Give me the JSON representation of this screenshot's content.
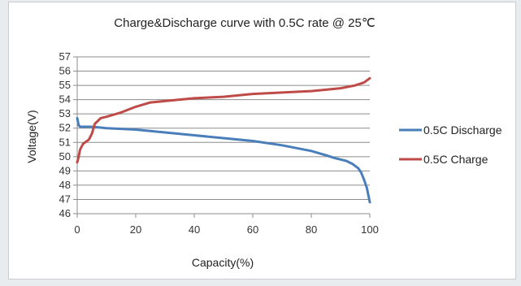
{
  "chart_data": {
    "type": "line",
    "title": "Charge&Discharge  curve with 0.5C rate @ 25℃",
    "xlabel": "Capacity(%)",
    "ylabel": "Voltage(V)",
    "xlim": [
      0,
      100
    ],
    "ylim": [
      46,
      57
    ],
    "xticks": [
      "0",
      "20",
      "40",
      "60",
      "80",
      "100"
    ],
    "yticks": [
      "46",
      "47",
      "48",
      "49",
      "50",
      "51",
      "52",
      "53",
      "54",
      "55",
      "56",
      "57"
    ],
    "grid": "horizontal",
    "legend_position": "right",
    "series": [
      {
        "name": "0.5C  Discharge",
        "legend_label": "0.5C  Discharge",
        "color": "#4a7ebb",
        "x": [
          0,
          0.5,
          1,
          2,
          5,
          10,
          20,
          30,
          40,
          50,
          60,
          70,
          80,
          85,
          88,
          90,
          92,
          94,
          96,
          97,
          98,
          99,
          100
        ],
        "y": [
          52.7,
          52.2,
          52.1,
          52.1,
          52.1,
          52.0,
          51.9,
          51.7,
          51.5,
          51.3,
          51.1,
          50.8,
          50.4,
          50.1,
          49.9,
          49.8,
          49.7,
          49.5,
          49.2,
          48.9,
          48.4,
          47.8,
          46.8
        ]
      },
      {
        "name": "0.5C  Charge",
        "legend_label": "0.5C  Charge",
        "color": "#be4b48",
        "x": [
          0,
          0.5,
          1,
          2,
          4,
          5,
          6,
          7,
          8,
          10,
          15,
          20,
          25,
          30,
          40,
          50,
          60,
          70,
          80,
          90,
          95,
          98,
          100
        ],
        "y": [
          49.6,
          50.0,
          50.5,
          50.9,
          51.2,
          51.6,
          52.3,
          52.5,
          52.7,
          52.8,
          53.1,
          53.5,
          53.8,
          53.9,
          54.1,
          54.2,
          54.4,
          54.5,
          54.6,
          54.8,
          55.0,
          55.2,
          55.5
        ]
      }
    ]
  }
}
